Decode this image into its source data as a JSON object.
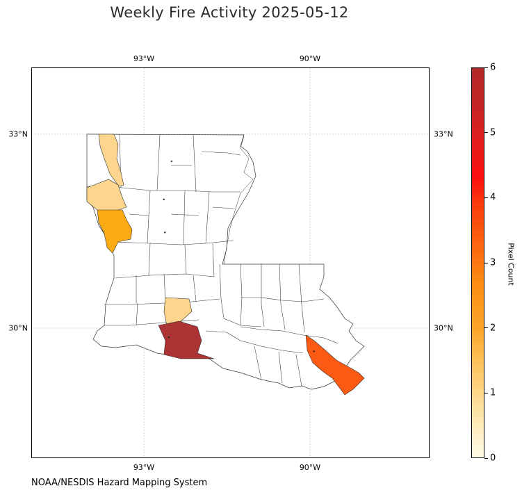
{
  "title": "Weekly Fire Activity 2025-05-12",
  "credit": "NOAA/NESDIS Hazard Mapping System",
  "map": {
    "region": "Louisiana parishes",
    "extent": {
      "lon": [
        -95.0,
        -87.8
      ],
      "lat": [
        28.2,
        34.0
      ]
    },
    "gridlines": true,
    "lon_ticks": [
      {
        "value": -93,
        "label": "93°W"
      },
      {
        "value": -90,
        "label": "90°W"
      }
    ],
    "lat_ticks": [
      {
        "value": 33,
        "label": "33°N"
      },
      {
        "value": 30,
        "label": "30°N"
      }
    ],
    "highlighted_parishes": [
      {
        "name": "Caddo",
        "pixel_count": 1,
        "color": "#fdd58c"
      },
      {
        "name": "De Soto",
        "pixel_count": 1,
        "color": "#fdd58c"
      },
      {
        "name": "Sabine",
        "pixel_count": 2,
        "color": "#fcaa14"
      },
      {
        "name": "Jefferson Davis",
        "pixel_count": 1,
        "color": "#fdd58c"
      },
      {
        "name": "Cameron",
        "pixel_count": 6,
        "color": "#ab3333"
      },
      {
        "name": "Plaquemines",
        "pixel_count": 3,
        "color": "#fb5a14"
      }
    ],
    "fire_points": [
      {
        "lon": -92.5,
        "lat": 32.58
      },
      {
        "lon": -92.64,
        "lat": 31.99
      },
      {
        "lon": -92.62,
        "lat": 31.48
      },
      {
        "lon": -92.55,
        "lat": 29.86
      },
      {
        "lon": -89.93,
        "lat": 29.64
      }
    ]
  },
  "colorbar": {
    "label": "Pixel Count",
    "min": 0,
    "max": 6,
    "ticks": [
      "0",
      "1",
      "2",
      "3",
      "4",
      "5",
      "6"
    ]
  }
}
